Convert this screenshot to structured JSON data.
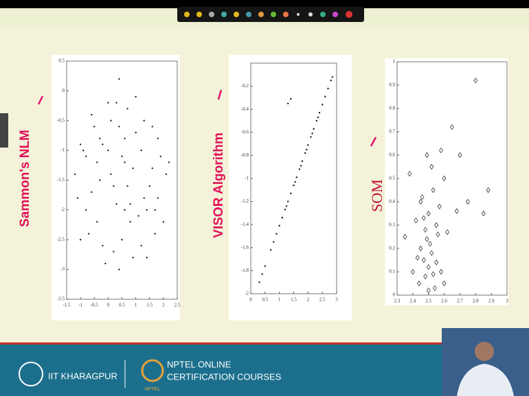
{
  "chart_data": [
    {
      "type": "scatter",
      "title": "Sammon's NLM",
      "marker": "dot",
      "color": "#222222",
      "x": [
        -1.2,
        -1.0,
        -0.8,
        -0.6,
        -0.4,
        -0.2,
        0,
        0.2,
        0.4,
        0.6,
        0.8,
        1.0,
        1.2,
        1.4,
        1.6,
        1.8,
        2.0,
        -1.1,
        -0.9,
        -0.7,
        -0.5,
        -0.3,
        -0.1,
        0.1,
        0.3,
        0.5,
        0.7,
        0.9,
        1.1,
        1.3,
        1.5,
        1.7,
        1.9,
        2.1,
        -0.6,
        -0.2,
        0.2,
        0.6,
        1.0,
        1.4,
        1.8,
        -0.4,
        0,
        0.4,
        0.8,
        1.2,
        1.6,
        0.5,
        -0.8,
        0.9,
        0.3,
        -0.3,
        1.3,
        0.6,
        0.1,
        1.7,
        -1.0,
        2.2,
        0.7,
        0.4
      ],
      "values": [
        -1.4,
        -0.9,
        -2.0,
        -0.4,
        -1.2,
        -2.6,
        -0.2,
        -1.6,
        0.2,
        -0.8,
        -2.2,
        -0.1,
        -1.0,
        -2.8,
        -0.6,
        -1.8,
        -2.2,
        -1.8,
        -1.0,
        -2.4,
        -0.6,
        -1.5,
        -2.9,
        -0.5,
        -1.9,
        -2.5,
        -0.3,
        -1.3,
        -2.1,
        -0.5,
        -1.6,
        -2.4,
        -1.1,
        -1.4,
        -1.7,
        -0.9,
        -2.7,
        -1.2,
        -0.7,
        -2.0,
        -0.8,
        -2.2,
        -1.0,
        -3.0,
        -1.9,
        -2.6,
        -1.3,
        -1.1,
        -1.1,
        -2.8,
        -0.2,
        -0.8,
        -1.8,
        -2.0,
        -1.4,
        -2.0,
        -2.5,
        -1.2,
        -1.6,
        -0.6
      ],
      "xlim": [
        -1.5,
        2.5
      ],
      "ylim": [
        -3.5,
        0.5
      ],
      "xticks": [
        -1.5,
        -1,
        -0.5,
        0,
        0.5,
        1,
        1.5,
        2,
        2.5
      ],
      "yticks": [
        0.5,
        0,
        -0.5,
        -1,
        -1.5,
        -2,
        -2.5,
        -3,
        -3.5
      ]
    },
    {
      "type": "scatter",
      "title": "VISOR Algorithm",
      "marker": "dot",
      "color": "#111111",
      "x": [
        0.3,
        0.4,
        0.5,
        0.7,
        0.8,
        0.9,
        1.0,
        1.1,
        1.2,
        1.3,
        1.4,
        1.5,
        1.6,
        1.7,
        1.8,
        1.9,
        2.0,
        2.1,
        2.2,
        2.3,
        2.4,
        2.5,
        2.6,
        2.7,
        2.8,
        2.85,
        1.3,
        1.4,
        1.25,
        1.55,
        1.75,
        1.95,
        2.15,
        2.35
      ],
      "values": [
        -1.9,
        -1.83,
        -1.76,
        -1.62,
        -1.55,
        -1.48,
        -1.41,
        -1.34,
        -1.27,
        -1.2,
        -1.13,
        -1.06,
        -0.99,
        -0.92,
        -0.85,
        -0.78,
        -0.71,
        -0.64,
        -0.57,
        -0.5,
        -0.43,
        -0.36,
        -0.29,
        -0.22,
        -0.15,
        -0.12,
        -0.35,
        -0.31,
        -1.24,
        -1.03,
        -0.89,
        -0.75,
        -0.61,
        -0.47
      ],
      "xlim": [
        0,
        3
      ],
      "ylim": [
        -2,
        0
      ],
      "xticks": [
        0,
        0.5,
        1,
        1.5,
        2,
        2.5,
        3
      ],
      "yticks": [
        -2,
        -1.8,
        -1.6,
        -1.4,
        -1.2,
        -1,
        -0.8,
        -0.6,
        -0.4,
        -0.2
      ]
    },
    {
      "type": "scatter",
      "title": "SOM",
      "marker": "diamond",
      "color": "#333333",
      "x": [
        2.35,
        2.38,
        2.4,
        2.42,
        2.44,
        2.45,
        2.46,
        2.47,
        2.48,
        2.48,
        2.49,
        2.5,
        2.5,
        2.51,
        2.52,
        2.53,
        2.54,
        2.55,
        2.56,
        2.57,
        2.58,
        2.6,
        2.62,
        2.65,
        2.68,
        2.7,
        2.75,
        2.8,
        2.85,
        2.88,
        2.45,
        2.5,
        2.52,
        2.47,
        2.55,
        2.6,
        2.43,
        2.58,
        2.49,
        2.53
      ],
      "values": [
        0.25,
        0.52,
        0.1,
        0.32,
        0.05,
        0.2,
        0.42,
        0.15,
        0.28,
        0.08,
        0.6,
        0.12,
        0.35,
        0.22,
        0.18,
        0.45,
        0.03,
        0.3,
        0.26,
        0.38,
        0.1,
        0.5,
        0.27,
        0.72,
        0.36,
        0.6,
        0.4,
        0.92,
        0.35,
        0.45,
        0.4,
        0.02,
        0.55,
        0.33,
        0.14,
        0.05,
        0.16,
        0.62,
        0.24,
        0.09
      ],
      "xlim": [
        2.3,
        3
      ],
      "ylim": [
        0,
        1
      ],
      "xticks": [
        2.3,
        2.4,
        2.5,
        2.6,
        2.7,
        2.8,
        2.9,
        3
      ],
      "yticks": [
        0,
        0.1,
        0.2,
        0.3,
        0.4,
        0.5,
        0.6,
        0.7,
        0.8,
        0.9,
        1
      ]
    }
  ],
  "footer": {
    "institute": "IIT KHARAGPUR",
    "nptel_line1": "NPTEL ONLINE",
    "nptel_line2": "CERTIFICATION COURSES",
    "nptel_logo": "NPTEL"
  }
}
